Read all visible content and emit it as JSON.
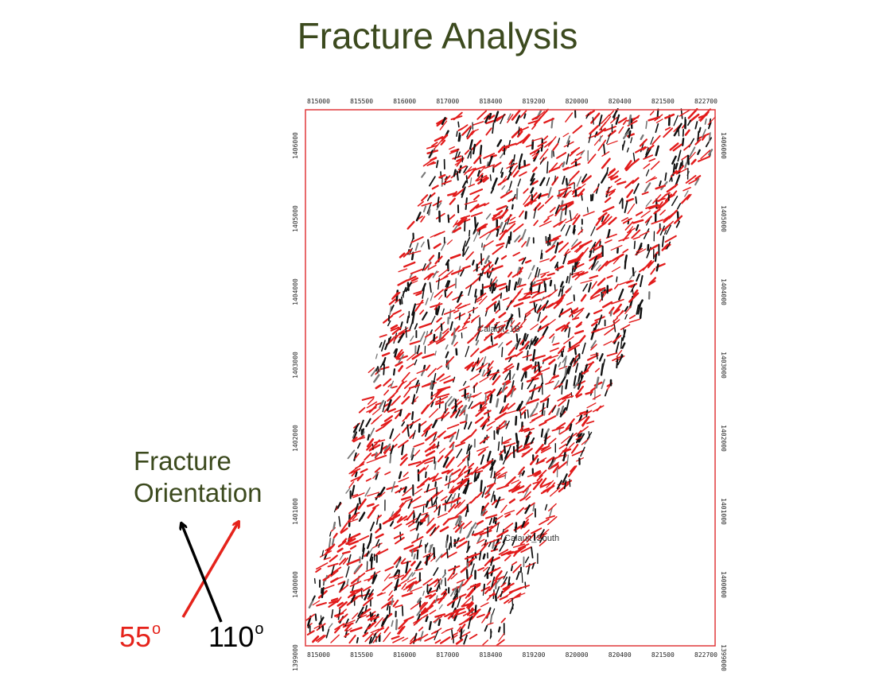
{
  "title": "Fracture Analysis",
  "map": {
    "x_ticks": [
      "815000",
      "815500",
      "816000",
      "817000",
      "818400",
      "819200",
      "820000",
      "820400",
      "821500",
      "822700"
    ],
    "y_ticks_left": [
      "1406000",
      "1405000",
      "1404000",
      "1403000",
      "1402000",
      "1401000",
      "1400000",
      "1399000"
    ],
    "y_ticks_right": [
      "1406000",
      "1405000",
      "1404000",
      "1403000",
      "1402000",
      "1401000",
      "1400000",
      "1399000"
    ],
    "wells": [
      {
        "name": "Calauit_1B"
      },
      {
        "name": "Calauit_South"
      }
    ],
    "colors": {
      "frame": "#e0393b",
      "red_fracture": "#e21b1b",
      "black_fracture": "#111111",
      "gray_fracture": "#777777"
    }
  },
  "legend": {
    "title_line1": "Fracture",
    "title_line2": "Orientation",
    "angle_red": {
      "value": "55",
      "unit": "o",
      "color": "#e5231b"
    },
    "angle_black": {
      "value": "110",
      "unit": "o",
      "color": "#000000"
    }
  }
}
